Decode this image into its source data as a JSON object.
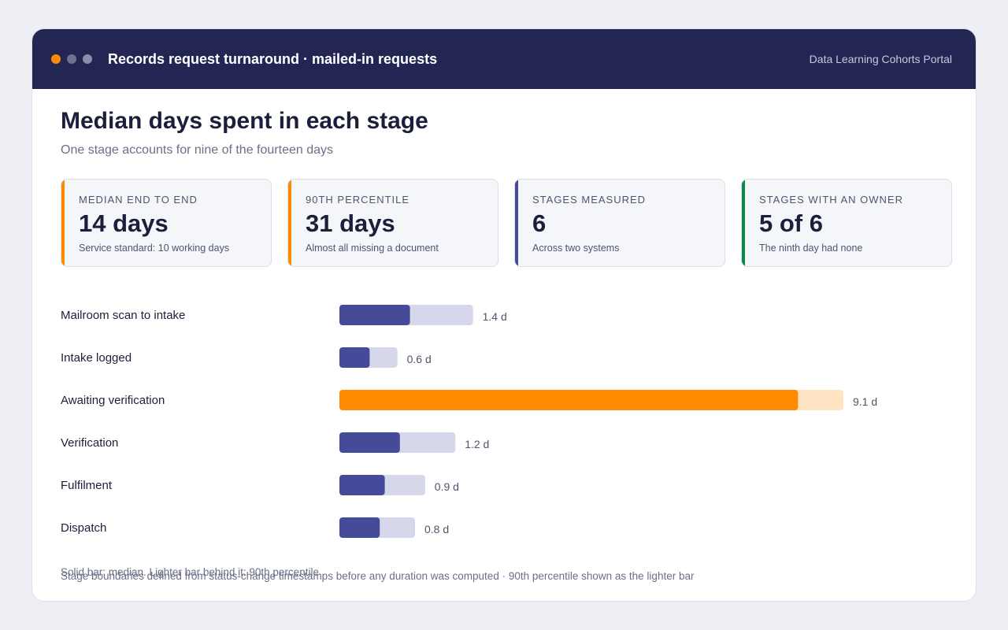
{
  "window": {
    "title": "Records request turnaround · mailed-in requests",
    "portal": "Data Learning Cohorts Portal"
  },
  "colors": {
    "titlebar": "#232653",
    "dot_1": "#ff8c00",
    "dot_2": "#6e7094",
    "dot_3": "#8b8dab",
    "median_bar": "#454a99",
    "p90_bar": "#d6d7ea",
    "highlight_median": "#ff8c00",
    "highlight_p90": "#ffe4c4",
    "accent_orange": "#ff8c00",
    "accent_indigo": "#454a99",
    "accent_green": "#0a8a4a"
  },
  "heading": "Median days spent in each stage",
  "subheading": "One stage accounts for nine of the fourteen days",
  "kpis": [
    {
      "label": "MEDIAN END TO END",
      "value": "14 days",
      "note": "Service standard: 10 working days",
      "accent": "accent_orange"
    },
    {
      "label": "90TH PERCENTILE",
      "value": "31 days",
      "note": "Almost all missing a document",
      "accent": "accent_orange"
    },
    {
      "label": "STAGES MEASURED",
      "value": "6",
      "note": "Across two systems",
      "accent": "accent_indigo"
    },
    {
      "label": "STAGES WITH AN OWNER",
      "value": "5 of 6",
      "note": "The ninth day had none",
      "accent": "accent_green"
    }
  ],
  "chart_data": {
    "type": "bar",
    "orientation": "horizontal",
    "categories": [
      "Mailroom scan to intake",
      "Intake logged",
      "Awaiting verification",
      "Verification",
      "Fulfilment",
      "Dispatch"
    ],
    "series": [
      {
        "name": "Solid bar: median",
        "values": [
          1.4,
          0.6,
          9.1,
          1.2,
          0.9,
          0.8
        ]
      },
      {
        "name": "Lighter bar behind it: 90th percentile",
        "values": [
          2.65,
          1.15,
          10.0,
          2.3,
          1.7,
          1.5
        ]
      }
    ],
    "value_labels": [
      "1.4 d",
      "0.6 d",
      "9.1 d",
      "1.2 d",
      "0.9 d",
      "0.8 d"
    ],
    "highlight_index": 2,
    "xlim": [
      0,
      10
    ],
    "grid": false
  },
  "legend_text": "Solid bar: median. Lighter bar behind it: 90th percentile",
  "footnote": "Stage boundaries defined from status-change timestamps before any duration was computed · 90th percentile shown as the lighter bar"
}
